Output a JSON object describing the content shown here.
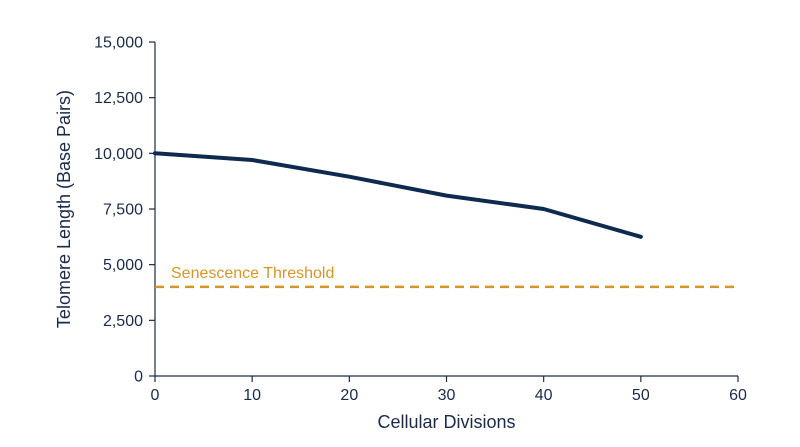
{
  "chart_data": {
    "type": "line",
    "title": "",
    "xlabel": "Cellular Divisions",
    "ylabel": "Telomere Length (Base Pairs)",
    "xlim": [
      0,
      60
    ],
    "ylim": [
      0,
      15000
    ],
    "x_ticks": [
      0,
      10,
      20,
      30,
      40,
      50,
      60
    ],
    "x_tick_labels": [
      "0",
      "10",
      "20",
      "30",
      "40",
      "50",
      "60"
    ],
    "y_ticks": [
      0,
      2500,
      5000,
      7500,
      10000,
      12500,
      15000
    ],
    "y_tick_labels": [
      "0",
      "2,500",
      "5,000",
      "7,500",
      "10,000",
      "12,500",
      "15,000"
    ],
    "grid": false,
    "legend": "none",
    "series": [
      {
        "x": [
          0,
          10,
          20,
          30,
          40,
          50
        ],
        "y": [
          10000,
          9700,
          8950,
          8100,
          7500,
          6250
        ],
        "color": "#0f2a4f"
      }
    ],
    "reference_lines": [
      {
        "label": "Senescence Threshold",
        "y": 4000,
        "style": "dashed",
        "color": "#d4962a"
      }
    ],
    "axis_color": "#1b2a4a"
  }
}
